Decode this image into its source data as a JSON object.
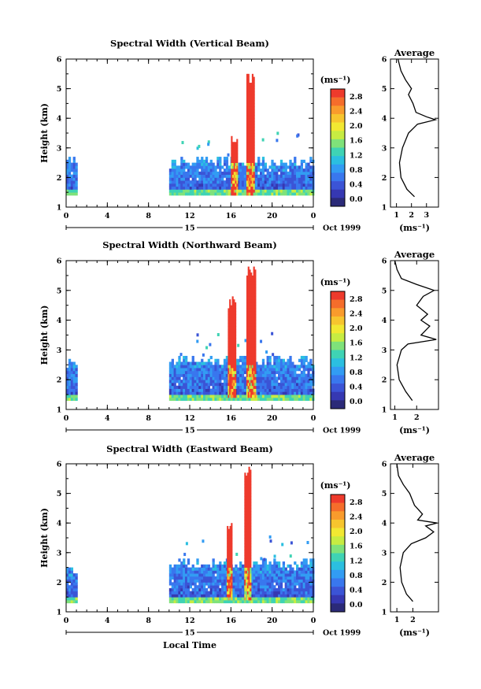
{
  "chart_data": [
    {
      "type": "heatmap",
      "title": "Spectral Width (Vertical Beam)",
      "ylabel": "Height (km)",
      "xlabel": "",
      "xlim": [
        0,
        24
      ],
      "ylim": [
        1,
        6
      ],
      "xticks": [
        "0",
        "4",
        "8",
        "12",
        "16",
        "20",
        "0"
      ],
      "yticks": [
        "1",
        "2",
        "3",
        "4",
        "5",
        "6"
      ],
      "date_label": "15",
      "month_label": "Oct 1999",
      "colorbar": {
        "unit": "(ms⁻¹)",
        "labels": [
          "2.8",
          "2.4",
          "2.0",
          "1.6",
          "1.2",
          "0.8",
          "0.4",
          "0.0"
        ],
        "range": [
          0,
          3.0
        ],
        "colors": [
          "#ee3a2c",
          "#f56d2b",
          "#f99b2c",
          "#f7c52e",
          "#f2e832",
          "#c7ec42",
          "#7fe27a",
          "#3fd3b4",
          "#2bbfe0",
          "#329cf3",
          "#3977ee",
          "#3b54d6",
          "#3638b2",
          "#2b2a78"
        ]
      },
      "data_blocks": [
        {
          "t": [
            0,
            1
          ],
          "top": 2.5,
          "base": 1.4
        },
        {
          "t": [
            10,
            24
          ],
          "top": 2.5,
          "base": 1.4
        }
      ],
      "convective_plumes": [
        {
          "t": [
            16.0,
            16.6
          ],
          "top": 3.6
        },
        {
          "t": [
            17.5,
            18.2
          ],
          "top": 5.5
        }
      ],
      "average": {
        "title": "Average",
        "xlabel": "(ms⁻¹)",
        "xticks": [
          "1",
          "2",
          "3"
        ],
        "xlim": [
          0.6,
          3.8
        ],
        "profile": [
          [
            1.35,
            2.2
          ],
          [
            1.6,
            1.7
          ],
          [
            2.0,
            1.3
          ],
          [
            2.5,
            1.2
          ],
          [
            3.0,
            1.4
          ],
          [
            3.5,
            1.8
          ],
          [
            3.8,
            2.4
          ],
          [
            3.95,
            3.6
          ],
          [
            4.05,
            3.0
          ],
          [
            4.2,
            2.3
          ],
          [
            4.5,
            2.1
          ],
          [
            4.8,
            1.8
          ],
          [
            5.0,
            2.0
          ],
          [
            5.3,
            1.6
          ],
          [
            5.6,
            1.3
          ],
          [
            6.0,
            1.1
          ]
        ]
      }
    },
    {
      "type": "heatmap",
      "title": "Spectral Width (Northward Beam)",
      "ylabel": "Height (km)",
      "xlabel": "",
      "xlim": [
        0,
        24
      ],
      "ylim": [
        1,
        6
      ],
      "xticks": [
        "0",
        "4",
        "8",
        "12",
        "16",
        "20",
        "0"
      ],
      "yticks": [
        "1",
        "2",
        "3",
        "4",
        "5",
        "6"
      ],
      "date_label": "15",
      "month_label": "Oct 1999",
      "colorbar": {
        "unit": "(ms⁻¹)",
        "labels": [
          "2.8",
          "2.4",
          "2.0",
          "1.6",
          "1.2",
          "0.8",
          "0.4",
          "0.0"
        ],
        "range": [
          0,
          3.0
        ],
        "colors": [
          "#ee3a2c",
          "#f56d2b",
          "#f99b2c",
          "#f7c52e",
          "#f2e832",
          "#c7ec42",
          "#7fe27a",
          "#3fd3b4",
          "#2bbfe0",
          "#329cf3",
          "#3977ee",
          "#3b54d6",
          "#3638b2",
          "#2b2a78"
        ]
      },
      "data_blocks": [
        {
          "t": [
            0,
            1
          ],
          "top": 2.5,
          "base": 1.3
        },
        {
          "t": [
            10,
            24
          ],
          "top": 2.6,
          "base": 1.3
        }
      ],
      "convective_plumes": [
        {
          "t": [
            15.7,
            16.4
          ],
          "top": 4.8
        },
        {
          "t": [
            17.5,
            18.3
          ],
          "top": 5.8
        }
      ],
      "average": {
        "title": "Average",
        "xlabel": "(ms⁻¹)",
        "xticks": [
          "1",
          "2"
        ],
        "xlim": [
          0.8,
          3.0
        ],
        "profile": [
          [
            1.3,
            1.8
          ],
          [
            1.6,
            1.5
          ],
          [
            2.0,
            1.2
          ],
          [
            2.5,
            1.1
          ],
          [
            3.0,
            1.3
          ],
          [
            3.2,
            1.6
          ],
          [
            3.35,
            2.9
          ],
          [
            3.5,
            2.2
          ],
          [
            3.8,
            2.6
          ],
          [
            4.0,
            2.2
          ],
          [
            4.2,
            2.5
          ],
          [
            4.5,
            2.0
          ],
          [
            4.8,
            2.3
          ],
          [
            5.0,
            2.8
          ],
          [
            5.2,
            2.0
          ],
          [
            5.4,
            1.3
          ],
          [
            5.7,
            1.1
          ],
          [
            6.0,
            1.0
          ]
        ]
      }
    },
    {
      "type": "heatmap",
      "title": "Spectral Width (Eastward Beam)",
      "ylabel": "Height (km)",
      "xlabel": "Local Time",
      "xlim": [
        0,
        24
      ],
      "ylim": [
        1,
        6
      ],
      "xticks": [
        "0",
        "4",
        "8",
        "12",
        "16",
        "20",
        "0"
      ],
      "yticks": [
        "1",
        "2",
        "3",
        "4",
        "5",
        "6"
      ],
      "date_label": "15",
      "month_label": "Oct 1999",
      "colorbar": {
        "unit": "(ms⁻¹)",
        "labels": [
          "2.8",
          "2.4",
          "2.0",
          "1.6",
          "1.2",
          "0.8",
          "0.4",
          "0.0"
        ],
        "range": [
          0,
          3.0
        ],
        "colors": [
          "#ee3a2c",
          "#f56d2b",
          "#f99b2c",
          "#f7c52e",
          "#f2e832",
          "#c7ec42",
          "#7fe27a",
          "#3fd3b4",
          "#2bbfe0",
          "#329cf3",
          "#3977ee",
          "#3b54d6",
          "#3638b2",
          "#2b2a78"
        ]
      },
      "data_blocks": [
        {
          "t": [
            0,
            1
          ],
          "top": 2.4,
          "base": 1.3
        },
        {
          "t": [
            10,
            24
          ],
          "top": 2.6,
          "base": 1.3
        }
      ],
      "convective_plumes": [
        {
          "t": [
            15.6,
            16.1
          ],
          "top": 4.0
        },
        {
          "t": [
            17.3,
            17.9
          ],
          "top": 5.9
        }
      ],
      "average": {
        "title": "Average",
        "xlabel": "(ms⁻¹)",
        "xticks": [
          "1",
          "2"
        ],
        "xlim": [
          0.6,
          3.6
        ],
        "profile": [
          [
            1.35,
            2.0
          ],
          [
            1.6,
            1.6
          ],
          [
            2.0,
            1.3
          ],
          [
            2.5,
            1.2
          ],
          [
            3.0,
            1.4
          ],
          [
            3.3,
            1.9
          ],
          [
            3.5,
            2.8
          ],
          [
            3.7,
            3.3
          ],
          [
            3.9,
            2.8
          ],
          [
            4.0,
            3.5
          ],
          [
            4.1,
            2.3
          ],
          [
            4.3,
            2.6
          ],
          [
            4.6,
            2.1
          ],
          [
            5.0,
            1.8
          ],
          [
            5.3,
            1.4
          ],
          [
            5.6,
            1.1
          ],
          [
            6.0,
            1.0
          ]
        ]
      }
    }
  ]
}
